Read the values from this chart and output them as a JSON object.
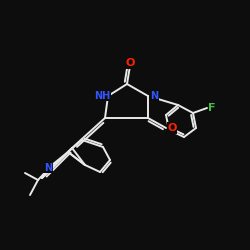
{
  "bg_color": "#0d0d0d",
  "bond_color": "#e8e8e8",
  "atom_colors": {
    "N": "#3355ff",
    "NH": "#3355ff",
    "O": "#ff2200",
    "F": "#44bb44"
  },
  "bond_width": 1.4,
  "font_size": 8
}
